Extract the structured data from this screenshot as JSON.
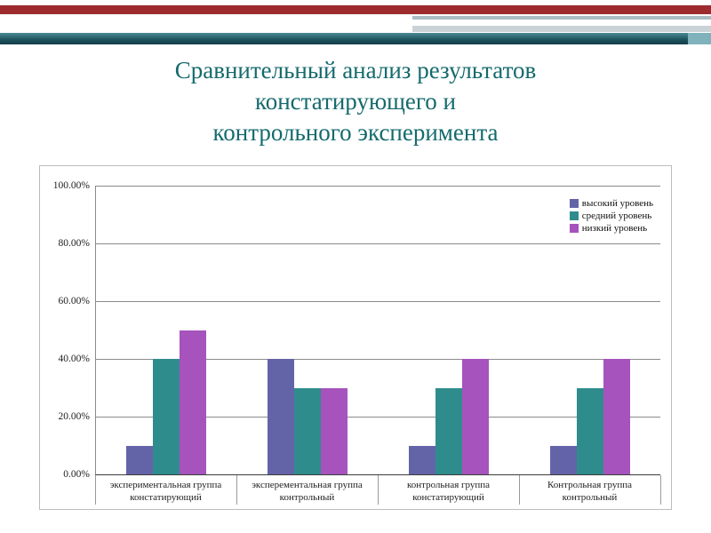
{
  "slide": {
    "title_lines": [
      "Сравнительный анализ результатов",
      "констатирующего и",
      "контрольного эксперимента"
    ]
  },
  "colors": {
    "top_bar_red": "#9e2b2e",
    "accent_bar_teal": "#1c515c",
    "title_text": "#156a6d"
  },
  "chart_data": {
    "type": "bar",
    "title": "",
    "xlabel": "",
    "ylabel": "",
    "ylim": [
      0,
      100
    ],
    "grid": true,
    "legend_position": "top-right",
    "ytick_labels": [
      "100.00%",
      "80.00%",
      "60.00%",
      "40.00%",
      "20.00%",
      "0.00%"
    ],
    "categories": [
      "экспериментальная группа констатирующий",
      "эксперементальная группа контрольный",
      "контрольная группа констатирующий",
      "Контрольная группа контрольный"
    ],
    "series": [
      {
        "name": "высокий уровень",
        "color": "#6364a8",
        "values": [
          10,
          40,
          10,
          10
        ]
      },
      {
        "name": "средний уровень",
        "color": "#2f8c8c",
        "values": [
          40,
          30,
          30,
          30
        ]
      },
      {
        "name": "низкий уровень",
        "color": "#a653bd",
        "values": [
          50,
          30,
          40,
          40
        ]
      }
    ]
  }
}
